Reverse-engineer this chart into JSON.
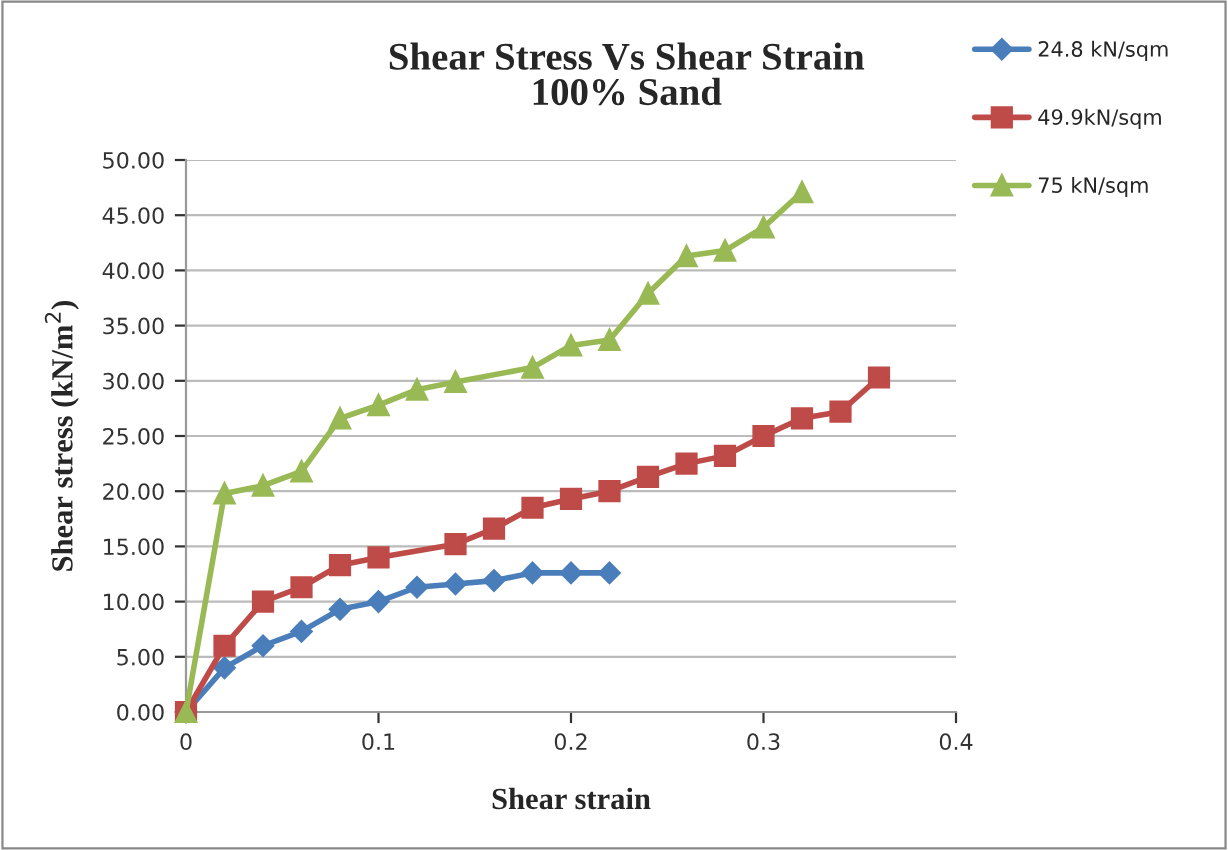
{
  "chart_data": {
    "type": "line",
    "title": "Shear Stress Vs Shear Strain\n100% Sand",
    "xlabel": "Shear strain",
    "ylabel": "Shear stress (kN/m$^{2}$)",
    "series": [
      {
        "name": "24.8 kN/sqm",
        "color": "#4a7ebb",
        "marker": "diamond",
        "x": [
          0,
          0.02,
          0.04,
          0.06,
          0.08,
          0.1,
          0.12,
          0.14,
          0.16,
          0.18,
          0.2,
          0.22
        ],
        "values": [
          0,
          4,
          6,
          7.3,
          9.3,
          10,
          11.3,
          11.6,
          11.9,
          12.6,
          12.6,
          12.6
        ]
      },
      {
        "name": "49.9kN/sqm",
        "color": "#be4b48",
        "marker": "square",
        "x": [
          0,
          0.02,
          0.04,
          0.06,
          0.08,
          0.1,
          0.14,
          0.16,
          0.18,
          0.2,
          0.22,
          0.24,
          0.26,
          0.28,
          0.3,
          0.32,
          0.34,
          0.36
        ],
        "values": [
          0,
          6,
          10,
          11.3,
          13.3,
          14,
          15.2,
          16.6,
          18.5,
          19.3,
          20,
          21.3,
          22.5,
          23.2,
          25,
          26.6,
          27.2,
          30.3
        ]
      },
      {
        "name": "75 kN/sqm",
        "color": "#98b954",
        "marker": "triangle",
        "x": [
          0,
          0.02,
          0.04,
          0.06,
          0.08,
          0.1,
          0.12,
          0.14,
          0.18,
          0.2,
          0.22,
          0.24,
          0.26,
          0.28,
          0.3,
          0.32
        ],
        "values": [
          0,
          19.8,
          20.5,
          21.8,
          26.6,
          27.8,
          29.2,
          29.9,
          31.2,
          33.2,
          33.7,
          37.9,
          41.3,
          41.8,
          43.9,
          47.1
        ]
      }
    ],
    "xlim": [
      0,
      0.4
    ],
    "xticks": [
      0,
      0.1,
      0.2,
      0.3,
      0.4
    ],
    "ylim": [
      0,
      50
    ],
    "yticks": [
      {
        "value": 0,
        "label": "0.00"
      },
      {
        "value": 5,
        "label": "5.00"
      },
      {
        "value": 10,
        "label": "10.00"
      },
      {
        "value": 15,
        "label": "15.00"
      },
      {
        "value": 20,
        "label": "20.00"
      },
      {
        "value": 25,
        "label": "25.00"
      },
      {
        "value": 30,
        "label": "30.00"
      },
      {
        "value": 35,
        "label": "35.00"
      },
      {
        "value": 40,
        "label": "40.00"
      },
      {
        "value": 45,
        "label": "45.00"
      },
      {
        "value": 50,
        "label": "50.00"
      }
    ],
    "grid": "y",
    "legend": "top right"
  }
}
